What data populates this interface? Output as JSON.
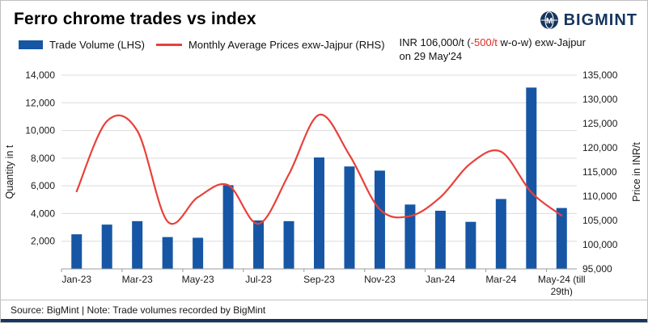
{
  "header": {
    "title": "Ferro chrome trades vs index",
    "logo_text": "BIGMINT"
  },
  "colors": {
    "bar_blue": "#1656a5",
    "line_red": "#e8413a",
    "highlight_red": "#e02b20",
    "navy": "#16355e",
    "gridline": "#dcdcdc",
    "axis": "#9b9b9b"
  },
  "legend": [
    {
      "label": "Trade Volume (LHS)",
      "type": "bar",
      "color": "#1656a5"
    },
    {
      "label": "Monthly Average Prices exw-Jajpur (RHS)",
      "type": "line",
      "color": "#e8413a"
    }
  ],
  "annotation": {
    "prefix": "INR 106,000/t (",
    "highlight": "-500/t",
    "suffix": " w-o-w) exw-Jajpur",
    "line2": "on 29 May'24"
  },
  "footer": {
    "source": "Source: BigMint | Note: Trade volumes recorded by BigMint"
  },
  "chart_data": {
    "type": "bar+line combo",
    "categories": [
      "Jan-23",
      "Feb-23",
      "Mar-23",
      "Apr-23",
      "May-23",
      "Jun-23",
      "Jul-23",
      "Aug-23",
      "Sep-23",
      "Oct-23",
      "Nov-23",
      "Dec-23",
      "Jan-24",
      "Feb-24",
      "Mar-24",
      "Apr-24",
      "May-24"
    ],
    "x_ticks": [
      {
        "i": 0,
        "label": "Jan-23"
      },
      {
        "i": 2,
        "label": "Mar-23"
      },
      {
        "i": 4,
        "label": "May-23"
      },
      {
        "i": 6,
        "label": "Jul-23"
      },
      {
        "i": 8,
        "label": "Sep-23"
      },
      {
        "i": 10,
        "label": "Nov-23"
      },
      {
        "i": 12,
        "label": "Jan-24"
      },
      {
        "i": 14,
        "label": "Mar-24"
      },
      {
        "i": 16,
        "label": "May-24 (till\n29th)"
      }
    ],
    "series": [
      {
        "name": "Trade Volume (LHS)",
        "type": "bar",
        "axis": "left",
        "color": "#1656a5",
        "values": [
          2500,
          3200,
          3450,
          2300,
          2250,
          6050,
          3500,
          3450,
          8050,
          7400,
          7100,
          4650,
          4200,
          3400,
          5050,
          13100,
          4400
        ]
      },
      {
        "name": "Monthly Average Prices exw-Jajpur (RHS)",
        "type": "line",
        "axis": "right",
        "color": "#e8413a",
        "values": [
          111000,
          125500,
          123500,
          104800,
          109800,
          112300,
          104300,
          114500,
          126800,
          118500,
          107300,
          105900,
          109800,
          116800,
          119200,
          110800,
          106000
        ]
      }
    ],
    "left_axis": {
      "label": "Quantity in t",
      "min": 0,
      "max": 14000,
      "tick_step": 2000
    },
    "right_axis": {
      "label": "Price in INR/t",
      "min": 95000,
      "max": 135000,
      "tick_step": 5000
    },
    "grid": true,
    "legend_position": "top-left"
  }
}
